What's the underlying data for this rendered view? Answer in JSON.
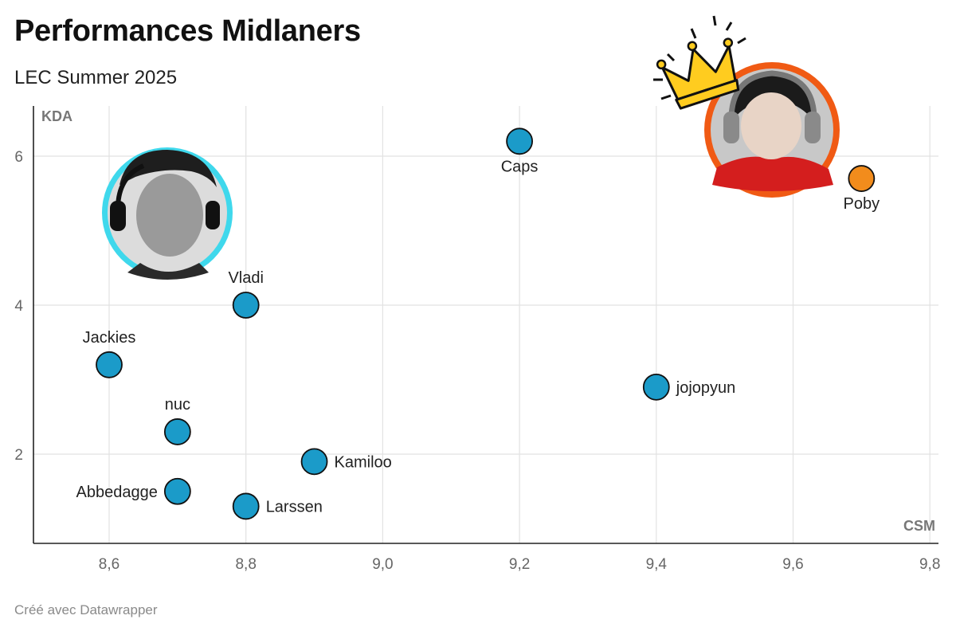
{
  "header": {
    "title": "Performances Midlaners",
    "subtitle": "LEC Summer 2025"
  },
  "footer": {
    "credit": "Créé avec Datawrapper"
  },
  "chart_data": {
    "type": "scatter",
    "title": "Performances Midlaners",
    "subtitle": "LEC Summer 2025",
    "xlabel": "CSM",
    "ylabel": "KDA",
    "xlim": [
      8.48,
      9.81
    ],
    "ylim": [
      0.85,
      6.65
    ],
    "x_ticks": [
      8.6,
      8.8,
      9.0,
      9.2,
      9.4,
      9.6,
      9.8
    ],
    "x_tick_labels": [
      "8,6",
      "8,8",
      "9,0",
      "9,2",
      "9,4",
      "9,6",
      "9,8"
    ],
    "y_ticks": [
      2,
      4,
      6
    ],
    "y_tick_labels": [
      "2",
      "4",
      "6"
    ],
    "grid": true,
    "colors": {
      "default_point": "#1b9bc9",
      "highlight_point": "#f28c1c",
      "point_stroke": "#111111"
    },
    "points": [
      {
        "name": "Caps",
        "x": 9.2,
        "y": 6.2,
        "label_pos": "below"
      },
      {
        "name": "Poby",
        "x": 9.7,
        "y": 5.7,
        "label_pos": "below",
        "highlight": true
      },
      {
        "name": "Vladi",
        "x": 8.8,
        "y": 4.0,
        "label_pos": "above"
      },
      {
        "name": "Jackies",
        "x": 8.6,
        "y": 3.2,
        "label_pos": "above"
      },
      {
        "name": "jojopyun",
        "x": 9.4,
        "y": 2.9,
        "label_pos": "right"
      },
      {
        "name": "nuc",
        "x": 8.7,
        "y": 2.3,
        "label_pos": "above"
      },
      {
        "name": "Kamiloo",
        "x": 8.9,
        "y": 1.9,
        "label_pos": "right"
      },
      {
        "name": "Abbedagge",
        "x": 8.7,
        "y": 1.5,
        "label_pos": "left"
      },
      {
        "name": "Larssen",
        "x": 8.8,
        "y": 1.3,
        "label_pos": "right"
      }
    ],
    "annotations": [
      {
        "type": "avatar",
        "near": "Jackies",
        "ring_color": "#3fd8ec"
      },
      {
        "type": "avatar",
        "near": "Poby",
        "ring_color": "#f05a14"
      },
      {
        "type": "crown-icon",
        "near": "Poby",
        "color": "#ffcc1f"
      }
    ]
  }
}
